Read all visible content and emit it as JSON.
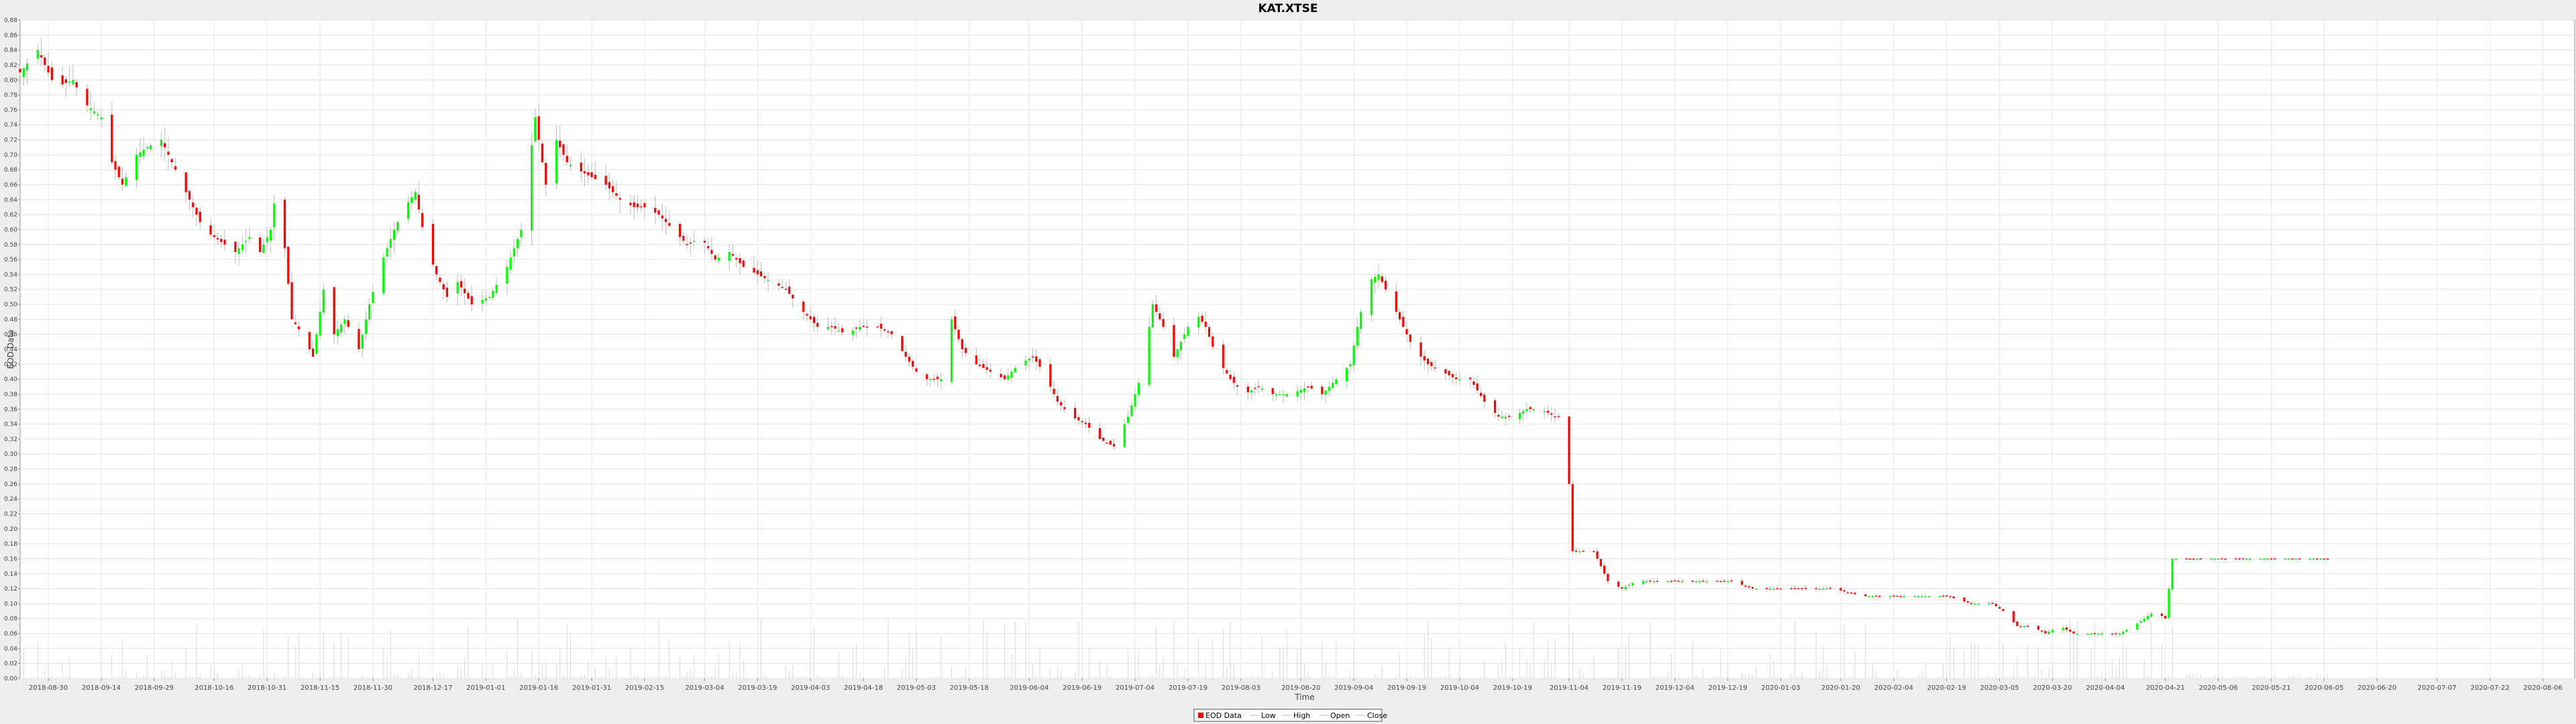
{
  "chart_data": {
    "type": "candlestick",
    "title": "KAT.XTSE",
    "xlabel": "Time",
    "ylabel": "EOD Data",
    "ylim": [
      0.0,
      0.88
    ],
    "y_ticks": [
      "0.00",
      "0.02",
      "0.04",
      "0.06",
      "0.08",
      "0.10",
      "0.12",
      "0.14",
      "0.16",
      "0.18",
      "0.20",
      "0.22",
      "0.24",
      "0.26",
      "0.28",
      "0.30",
      "0.32",
      "0.34",
      "0.36",
      "0.38",
      "0.40",
      "0.42",
      "0.44",
      "0.46",
      "0.48",
      "0.50",
      "0.52",
      "0.54",
      "0.56",
      "0.58",
      "0.60",
      "0.62",
      "0.64",
      "0.66",
      "0.68",
      "0.70",
      "0.72",
      "0.74",
      "0.76",
      "0.78",
      "0.80",
      "0.82",
      "0.84",
      "0.86",
      "0.88"
    ],
    "x_range": [
      "2018-08-22",
      "2020-08-15"
    ],
    "x_ticks": [
      "2018-08-30",
      "2018-09-14",
      "2018-09-29",
      "2018-10-16",
      "2018-10-31",
      "2018-11-15",
      "2018-11-30",
      "2018-12-17",
      "2019-01-01",
      "2019-01-16",
      "2019-01-31",
      "2019-02-15",
      "2019-03-04",
      "2019-03-19",
      "2019-04-03",
      "2019-04-18",
      "2019-05-03",
      "2019-05-18",
      "2019-06-04",
      "2019-06-19",
      "2019-07-04",
      "2019-07-19",
      "2019-08-03",
      "2019-08-20",
      "2019-09-04",
      "2019-09-19",
      "2019-10-04",
      "2019-10-19",
      "2019-11-04",
      "2019-11-19",
      "2019-12-04",
      "2019-12-19",
      "2020-01-03",
      "2020-01-20",
      "2020-02-04",
      "2020-02-19",
      "2020-03-05",
      "2020-03-20",
      "2020-04-04",
      "2020-04-21",
      "2020-05-06",
      "2020-05-21",
      "2020-06-05",
      "2020-06-20",
      "2020-07-07",
      "2020-07-22",
      "2020-08-06"
    ],
    "grid": true,
    "legend_position": "bottom",
    "legend": [
      "EOD Data",
      "Low",
      "High",
      "Open",
      "Close"
    ],
    "colors": {
      "up": "#00ff00",
      "down": "#ff0000",
      "volume": "#d8d8d8"
    },
    "close_path": [
      [
        "2018-08-22",
        0.81
      ],
      [
        "2018-08-27",
        0.84
      ],
      [
        "2018-09-01",
        0.79
      ],
      [
        "2018-09-06",
        0.8
      ],
      [
        "2018-09-09",
        0.77
      ],
      [
        "2018-09-14",
        0.75
      ],
      [
        "2018-09-17",
        0.69
      ],
      [
        "2018-09-20",
        0.66
      ],
      [
        "2018-09-24",
        0.7
      ],
      [
        "2018-09-27",
        0.71
      ],
      [
        "2018-10-01",
        0.72
      ],
      [
        "2018-10-04",
        0.69
      ],
      [
        "2018-10-07",
        0.66
      ],
      [
        "2018-10-10",
        0.63
      ],
      [
        "2018-10-13",
        0.6
      ],
      [
        "2018-10-16",
        0.59
      ],
      [
        "2018-10-19",
        0.58
      ],
      [
        "2018-10-22",
        0.57
      ],
      [
        "2018-10-26",
        0.59
      ],
      [
        "2018-10-29",
        0.57
      ],
      [
        "2018-11-01",
        0.6
      ],
      [
        "2018-11-03",
        0.67
      ],
      [
        "2018-11-07",
        0.48
      ],
      [
        "2018-11-10",
        0.46
      ],
      [
        "2018-11-13",
        0.43
      ],
      [
        "2018-11-16",
        0.52
      ],
      [
        "2018-11-19",
        0.46
      ],
      [
        "2018-11-22",
        0.48
      ],
      [
        "2018-11-26",
        0.44
      ],
      [
        "2018-11-29",
        0.5
      ],
      [
        "2018-12-02",
        0.55
      ],
      [
        "2018-12-06",
        0.6
      ],
      [
        "2018-12-09",
        0.63
      ],
      [
        "2018-12-12",
        0.65
      ],
      [
        "2018-12-15",
        0.58
      ],
      [
        "2018-12-18",
        0.54
      ],
      [
        "2018-12-21",
        0.51
      ],
      [
        "2018-12-24",
        0.53
      ],
      [
        "2018-12-28",
        0.5
      ],
      [
        "2019-01-02",
        0.51
      ],
      [
        "2019-01-07",
        0.55
      ],
      [
        "2019-01-11",
        0.6
      ],
      [
        "2019-01-15",
        0.75
      ],
      [
        "2019-01-18",
        0.66
      ],
      [
        "2019-01-21",
        0.72
      ],
      [
        "2019-01-24",
        0.69
      ],
      [
        "2019-01-27",
        0.68
      ],
      [
        "2019-01-31",
        0.67
      ],
      [
        "2019-02-04",
        0.66
      ],
      [
        "2019-02-08",
        0.64
      ],
      [
        "2019-02-12",
        0.63
      ],
      [
        "2019-02-15",
        0.63
      ],
      [
        "2019-02-19",
        0.62
      ],
      [
        "2019-02-23",
        0.6
      ],
      [
        "2019-02-27",
        0.58
      ],
      [
        "2019-03-03",
        0.59
      ],
      [
        "2019-03-07",
        0.56
      ],
      [
        "2019-03-11",
        0.57
      ],
      [
        "2019-03-15",
        0.55
      ],
      [
        "2019-03-19",
        0.54
      ],
      [
        "2019-03-23",
        0.53
      ],
      [
        "2019-03-27",
        0.52
      ],
      [
        "2019-04-01",
        0.49
      ],
      [
        "2019-04-05",
        0.47
      ],
      [
        "2019-04-09",
        0.47
      ],
      [
        "2019-04-13",
        0.46
      ],
      [
        "2019-04-17",
        0.47
      ],
      [
        "2019-04-22",
        0.47
      ],
      [
        "2019-04-26",
        0.46
      ],
      [
        "2019-04-30",
        0.43
      ],
      [
        "2019-05-03",
        0.41
      ],
      [
        "2019-05-06",
        0.4
      ],
      [
        "2019-05-10",
        0.4
      ],
      [
        "2019-05-13",
        0.48
      ],
      [
        "2019-05-16",
        0.44
      ],
      [
        "2019-05-20",
        0.42
      ],
      [
        "2019-05-24",
        0.41
      ],
      [
        "2019-05-28",
        0.4
      ],
      [
        "2019-06-01",
        0.42
      ],
      [
        "2019-06-05",
        0.43
      ],
      [
        "2019-06-08",
        0.41
      ],
      [
        "2019-06-12",
        0.37
      ],
      [
        "2019-06-16",
        0.35
      ],
      [
        "2019-06-20",
        0.34
      ],
      [
        "2019-06-24",
        0.32
      ],
      [
        "2019-06-28",
        0.31
      ],
      [
        "2019-07-02",
        0.35
      ],
      [
        "2019-07-06",
        0.41
      ],
      [
        "2019-07-09",
        0.5
      ],
      [
        "2019-07-12",
        0.47
      ],
      [
        "2019-07-15",
        0.43
      ],
      [
        "2019-07-18",
        0.46
      ],
      [
        "2019-07-21",
        0.49
      ],
      [
        "2019-07-24",
        0.47
      ],
      [
        "2019-07-27",
        0.43
      ],
      [
        "2019-07-31",
        0.4
      ],
      [
        "2019-08-04",
        0.38
      ],
      [
        "2019-08-08",
        0.39
      ],
      [
        "2019-08-12",
        0.38
      ],
      [
        "2019-08-17",
        0.38
      ],
      [
        "2019-08-22",
        0.39
      ],
      [
        "2019-08-26",
        0.38
      ],
      [
        "2019-08-30",
        0.4
      ],
      [
        "2019-09-03",
        0.42
      ],
      [
        "2019-09-05",
        0.47
      ],
      [
        "2019-09-08",
        0.53
      ],
      [
        "2019-09-11",
        0.54
      ],
      [
        "2019-09-14",
        0.51
      ],
      [
        "2019-09-17",
        0.48
      ],
      [
        "2019-09-21",
        0.44
      ],
      [
        "2019-09-25",
        0.42
      ],
      [
        "2019-09-29",
        0.41
      ],
      [
        "2019-10-03",
        0.4
      ],
      [
        "2019-10-07",
        0.4
      ],
      [
        "2019-10-11",
        0.37
      ],
      [
        "2019-10-15",
        0.35
      ],
      [
        "2019-10-19",
        0.35
      ],
      [
        "2019-10-23",
        0.36
      ],
      [
        "2019-10-27",
        0.36
      ],
      [
        "2019-10-31",
        0.35
      ],
      [
        "2019-11-03",
        0.35
      ],
      [
        "2019-11-05",
        0.17
      ],
      [
        "2019-11-08",
        0.17
      ],
      [
        "2019-11-11",
        0.17
      ],
      [
        "2019-11-15",
        0.13
      ],
      [
        "2019-11-19",
        0.12
      ],
      [
        "2019-11-23",
        0.13
      ],
      [
        "2019-11-29",
        0.13
      ],
      [
        "2019-12-05",
        0.13
      ],
      [
        "2019-12-11",
        0.13
      ],
      [
        "2019-12-15",
        0.13
      ],
      [
        "2019-12-20",
        0.13
      ],
      [
        "2019-12-26",
        0.12
      ],
      [
        "2020-01-02",
        0.12
      ],
      [
        "2020-01-10",
        0.12
      ],
      [
        "2020-01-18",
        0.12
      ],
      [
        "2020-01-26",
        0.11
      ],
      [
        "2020-02-03",
        0.11
      ],
      [
        "2020-02-11",
        0.11
      ],
      [
        "2020-02-19",
        0.11
      ],
      [
        "2020-02-26",
        0.1
      ],
      [
        "2020-03-03",
        0.1
      ],
      [
        "2020-03-06",
        0.09
      ],
      [
        "2020-03-10",
        0.07
      ],
      [
        "2020-03-14",
        0.07
      ],
      [
        "2020-03-18",
        0.06
      ],
      [
        "2020-03-22",
        0.07
      ],
      [
        "2020-03-26",
        0.06
      ],
      [
        "2020-03-30",
        0.06
      ],
      [
        "2020-04-04",
        0.06
      ],
      [
        "2020-04-08",
        0.06
      ],
      [
        "2020-04-12",
        0.07
      ],
      [
        "2020-04-15",
        0.08
      ],
      [
        "2020-04-18",
        0.09
      ],
      [
        "2020-04-21",
        0.08
      ],
      [
        "2020-04-23",
        0.16
      ],
      [
        "2020-05-06",
        0.16
      ],
      [
        "2020-05-21",
        0.16
      ],
      [
        "2020-06-06",
        0.16
      ]
    ]
  }
}
